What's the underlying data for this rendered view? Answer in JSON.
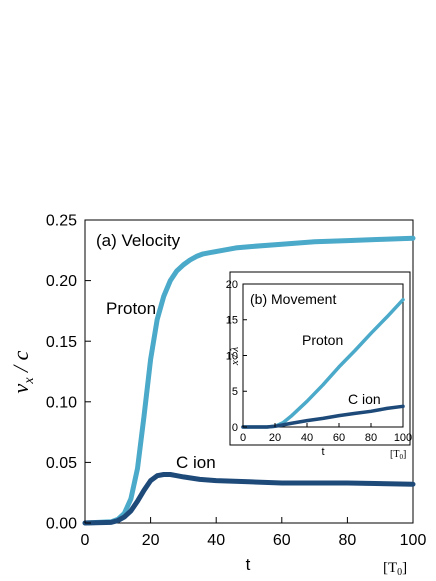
{
  "chart_data": [
    {
      "type": "line",
      "panel_label": "(a) Velocity",
      "xlabel": "t",
      "xunit": "[T0]",
      "ylabel": "vx / c",
      "xlim": [
        0,
        100
      ],
      "ylim": [
        0,
        0.25
      ],
      "xticks": [
        "0",
        "20",
        "40",
        "60",
        "80",
        "100"
      ],
      "yticks": [
        "0.00",
        "0.05",
        "0.10",
        "0.15",
        "0.20",
        "0.25"
      ],
      "series": [
        {
          "name": "Proton",
          "color": "#4ba9c9",
          "x": [
            0,
            8,
            10,
            12,
            14,
            16,
            18,
            20,
            22,
            24,
            26,
            28,
            30,
            32,
            34,
            36,
            38,
            42,
            46,
            50,
            60,
            70,
            80,
            90,
            100
          ],
          "y": [
            0,
            0.001,
            0.003,
            0.008,
            0.02,
            0.045,
            0.088,
            0.135,
            0.168,
            0.187,
            0.2,
            0.208,
            0.213,
            0.217,
            0.22,
            0.222,
            0.223,
            0.225,
            0.227,
            0.228,
            0.23,
            0.232,
            0.233,
            0.234,
            0.235
          ]
        },
        {
          "name": "C ion",
          "color": "#1e4a7a",
          "x": [
            0,
            8,
            10,
            12,
            14,
            16,
            18,
            20,
            22,
            24,
            26,
            28,
            30,
            35,
            40,
            50,
            60,
            80,
            100
          ],
          "y": [
            0,
            0.0005,
            0.002,
            0.005,
            0.01,
            0.018,
            0.027,
            0.035,
            0.039,
            0.04,
            0.04,
            0.039,
            0.038,
            0.036,
            0.035,
            0.034,
            0.033,
            0.033,
            0.032
          ]
        }
      ]
    },
    {
      "type": "line",
      "panel_label": "(b) Movement",
      "xlabel": "t",
      "xunit": "[T0]",
      "ylabel": "x / λ",
      "xlim": [
        0,
        100
      ],
      "ylim": [
        0,
        20
      ],
      "xticks": [
        "0",
        "20",
        "40",
        "60",
        "80",
        "100"
      ],
      "yticks": [
        "0",
        "5",
        "10",
        "15",
        "20"
      ],
      "series": [
        {
          "name": "Proton",
          "color": "#4ba9c9",
          "x": [
            0,
            15,
            20,
            25,
            30,
            40,
            50,
            60,
            70,
            80,
            90,
            100
          ],
          "y": [
            0,
            0,
            0.1,
            0.6,
            1.5,
            3.6,
            5.9,
            8.4,
            10.7,
            13.1,
            15.4,
            17.8
          ]
        },
        {
          "name": "C ion",
          "color": "#1e4a7a",
          "x": [
            0,
            15,
            20,
            25,
            30,
            40,
            50,
            60,
            70,
            80,
            90,
            100
          ],
          "y": [
            0,
            0,
            0.1,
            0.3,
            0.5,
            0.9,
            1.2,
            1.6,
            1.9,
            2.2,
            2.6,
            2.9
          ]
        }
      ]
    }
  ]
}
